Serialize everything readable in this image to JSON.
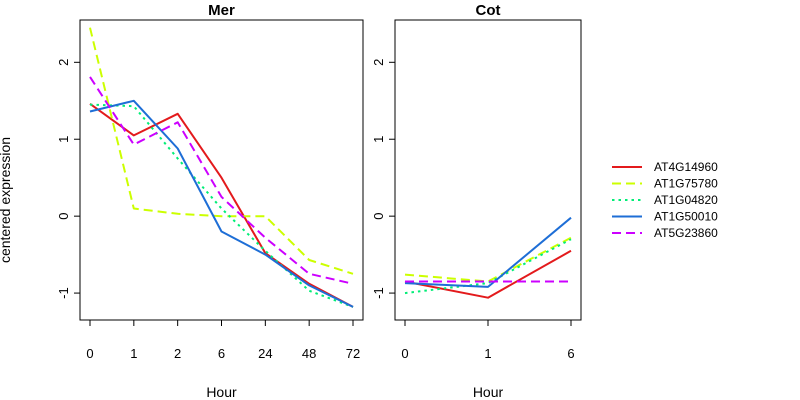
{
  "chart_data": {
    "type": "line",
    "y_axis_label": "centered expression",
    "ylim": [
      -1.35,
      2.55
    ],
    "y_ticks": [
      "-1",
      "0",
      "1",
      "2"
    ],
    "legend": {
      "placement": "right",
      "entries": [
        {
          "name": "AT4G14960",
          "color": "#e31a1c",
          "dash": "solid"
        },
        {
          "name": "AT1G75780",
          "color": "#ccff00",
          "dash": "dashed"
        },
        {
          "name": "AT1G04820",
          "color": "#00ee76",
          "dash": "dotted"
        },
        {
          "name": "AT1G50010",
          "color": "#1e6ed6",
          "dash": "solid"
        },
        {
          "name": "AT5G23860",
          "color": "#cc00ff",
          "dash": "dashed"
        }
      ]
    },
    "panels": [
      {
        "title": "Mer",
        "xlabel": "Hour",
        "categories": [
          "0",
          "1",
          "2",
          "6",
          "24",
          "48",
          "72"
        ],
        "series": [
          {
            "name": "AT4G14960",
            "values": [
              1.46,
              1.05,
              1.33,
              0.5,
              -0.48,
              -0.88,
              -1.18
            ]
          },
          {
            "name": "AT1G75780",
            "values": [
              2.45,
              0.1,
              0.03,
              0.0,
              0.0,
              -0.57,
              -0.75
            ]
          },
          {
            "name": "AT1G04820",
            "values": [
              1.45,
              1.43,
              0.75,
              0.1,
              -0.45,
              -0.97,
              -1.18
            ]
          },
          {
            "name": "AT1G50010",
            "values": [
              1.36,
              1.5,
              0.88,
              -0.2,
              -0.5,
              -0.9,
              -1.18
            ]
          },
          {
            "name": "AT5G23860",
            "values": [
              1.81,
              0.93,
              1.22,
              0.25,
              -0.28,
              -0.75,
              -0.88
            ]
          }
        ]
      },
      {
        "title": "Cot",
        "xlabel": "Hour",
        "categories": [
          "0",
          "1",
          "6"
        ],
        "series": [
          {
            "name": "AT4G14960",
            "values": [
              -0.85,
              -1.06,
              -0.45
            ]
          },
          {
            "name": "AT1G75780",
            "values": [
              -0.76,
              -0.85,
              -0.28
            ]
          },
          {
            "name": "AT1G04820",
            "values": [
              -1.0,
              -0.87,
              -0.3
            ]
          },
          {
            "name": "AT1G50010",
            "values": [
              -0.87,
              -0.92,
              -0.02
            ]
          },
          {
            "name": "AT5G23860",
            "values": [
              -0.85,
              -0.85,
              -0.85
            ]
          }
        ]
      }
    ]
  }
}
